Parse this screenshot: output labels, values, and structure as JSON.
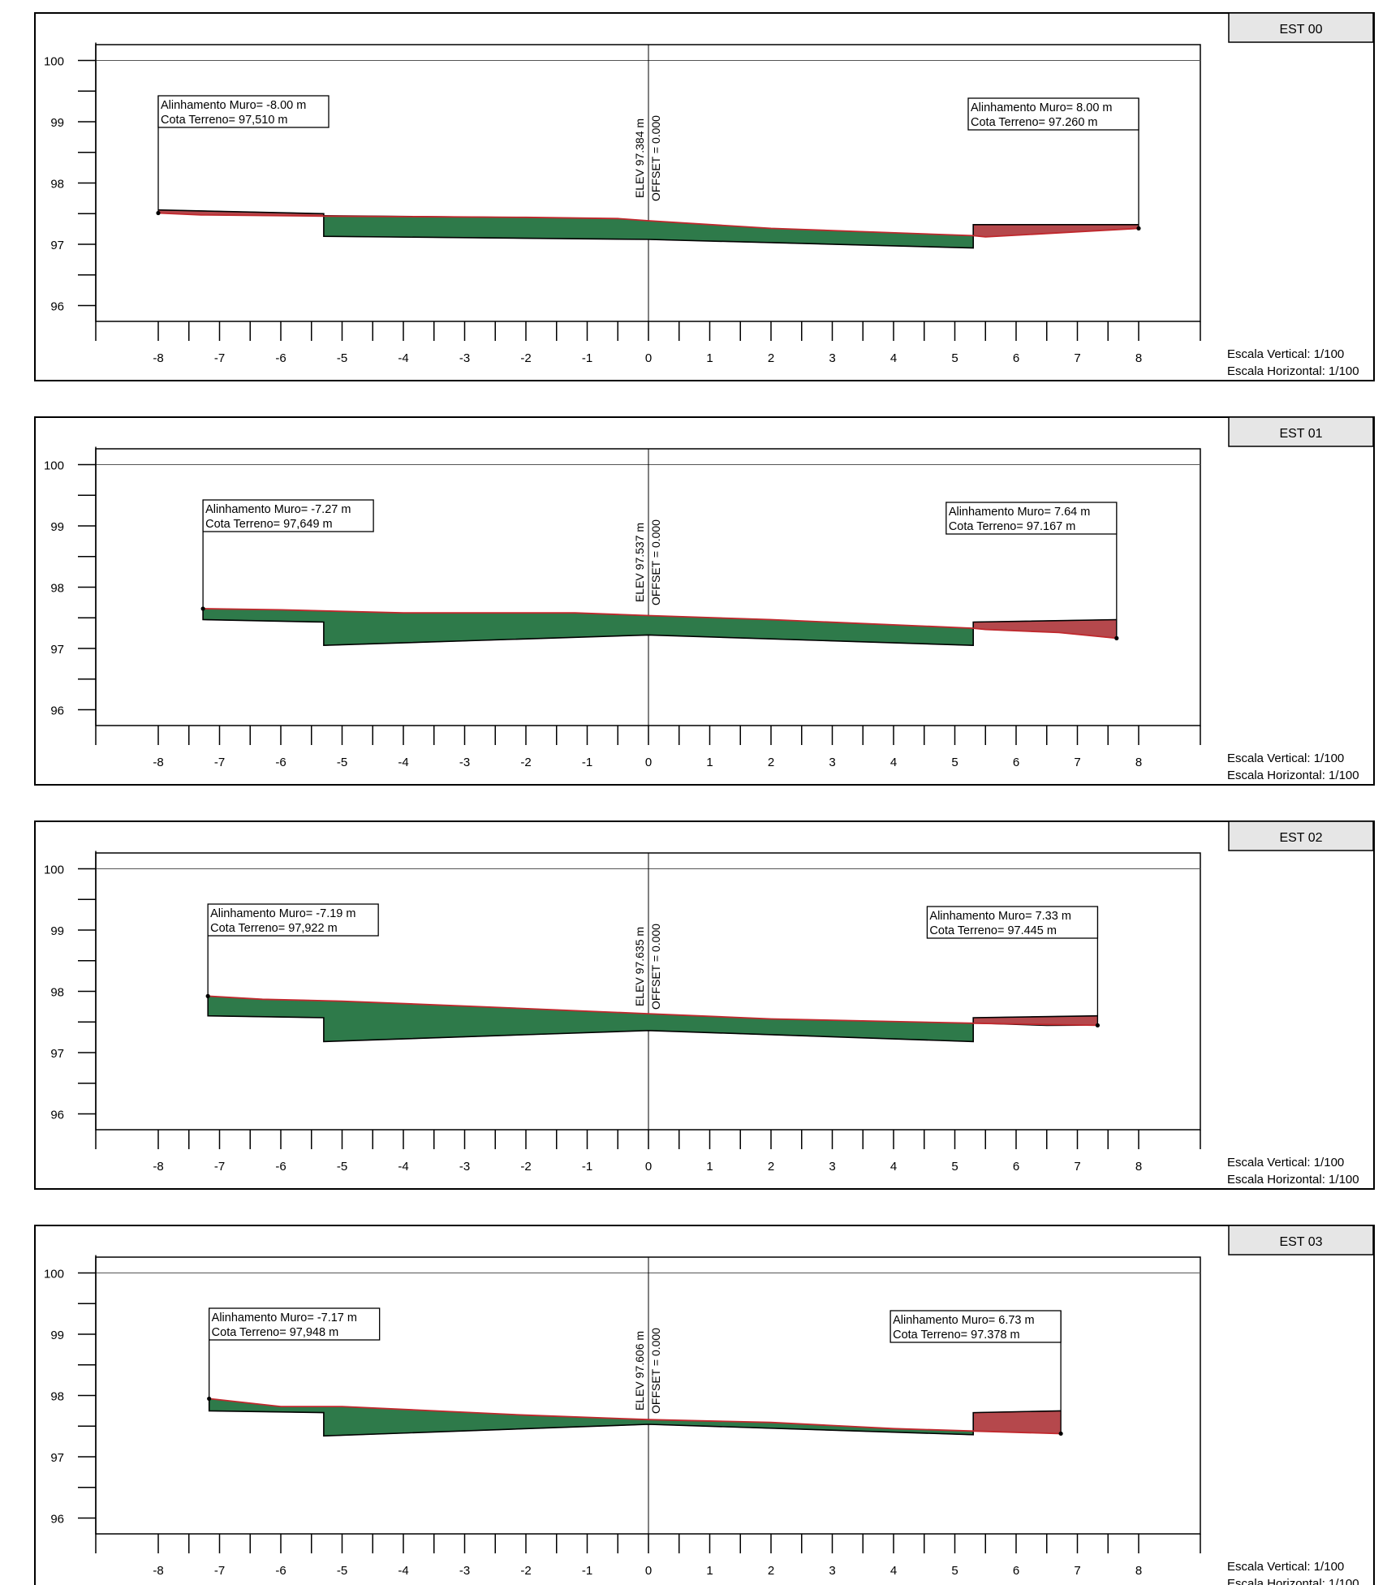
{
  "chart_data": [
    {
      "type": "area",
      "station": "EST 00",
      "center_label": {
        "elev": "ELEV 97.384 m",
        "offset": "OFFSET = 0.000"
      },
      "left_box": {
        "line1": "Alinhamento Muro= -8.00 m",
        "line2": "Cota Terreno= 97,510 m"
      },
      "right_box": {
        "line1": "Alinhamento Muro= 8.00 m",
        "line2": "Cota Terreno= 97.260 m"
      },
      "scale_vertical": "Escala Vertical: 1/100",
      "scale_horizontal": "Escala Horizontal: 1/100",
      "xlim": [
        -9,
        9
      ],
      "ylim": [
        95.75,
        100.25
      ],
      "x_ticks": [
        -8,
        -7,
        -6,
        -5,
        -4,
        -3,
        -2,
        -1,
        0,
        1,
        2,
        3,
        4,
        5,
        6,
        7,
        8
      ],
      "y_ticks": [
        96,
        97,
        98,
        99,
        100
      ],
      "left_wall_x": -8.0,
      "right_wall_x": 8.0,
      "ground": [
        [
          -8.0,
          97.51
        ],
        [
          -7.3,
          97.48
        ],
        [
          -5.3,
          97.46
        ],
        [
          -2.0,
          97.44
        ],
        [
          -0.5,
          97.42
        ],
        [
          0,
          97.384
        ],
        [
          2.0,
          97.26
        ],
        [
          5.3,
          97.14
        ],
        [
          5.5,
          97.12
        ],
        [
          8.0,
          97.26
        ]
      ],
      "design": [
        [
          -8.0,
          97.56
        ],
        [
          -5.3,
          97.5
        ],
        [
          -5.3,
          97.13
        ],
        [
          0,
          97.08
        ],
        [
          5.3,
          96.94
        ],
        [
          5.3,
          97.32
        ],
        [
          8.0,
          97.32
        ]
      ],
      "cut_polygon": [
        [
          -5.3,
          97.47
        ],
        [
          -2.0,
          97.44
        ],
        [
          -0.5,
          97.42
        ],
        [
          0,
          97.384
        ],
        [
          2.0,
          97.26
        ],
        [
          5.3,
          97.14
        ],
        [
          5.3,
          96.94
        ],
        [
          0,
          97.08
        ],
        [
          -5.3,
          97.13
        ]
      ],
      "fill_polygons": [
        [
          [
            -8.0,
            97.56
          ],
          [
            -5.3,
            97.5
          ],
          [
            -5.3,
            97.46
          ],
          [
            -7.3,
            97.48
          ],
          [
            -8.0,
            97.51
          ]
        ],
        [
          [
            5.3,
            97.32
          ],
          [
            8.0,
            97.32
          ],
          [
            8.0,
            97.26
          ],
          [
            5.5,
            97.12
          ],
          [
            5.3,
            97.14
          ]
        ]
      ]
    },
    {
      "type": "area",
      "station": "EST 01",
      "center_label": {
        "elev": "ELEV 97.537 m",
        "offset": "OFFSET = 0.000"
      },
      "left_box": {
        "line1": "Alinhamento Muro= -7.27 m",
        "line2": "Cota Terreno= 97,649 m"
      },
      "right_box": {
        "line1": "Alinhamento Muro= 7.64 m",
        "line2": "Cota Terreno= 97.167 m"
      },
      "scale_vertical": "Escala Vertical: 1/100",
      "scale_horizontal": "Escala Horizontal: 1/100",
      "xlim": [
        -9,
        9
      ],
      "ylim": [
        95.75,
        100.25
      ],
      "x_ticks": [
        -8,
        -7,
        -6,
        -5,
        -4,
        -3,
        -2,
        -1,
        0,
        1,
        2,
        3,
        4,
        5,
        6,
        7,
        8
      ],
      "y_ticks": [
        96,
        97,
        98,
        99,
        100
      ],
      "left_wall_x": -7.27,
      "right_wall_x": 7.64,
      "ground": [
        [
          -7.27,
          97.649
        ],
        [
          -6.0,
          97.63
        ],
        [
          -4.0,
          97.58
        ],
        [
          -1.2,
          97.58
        ],
        [
          0,
          97.537
        ],
        [
          2.0,
          97.47
        ],
        [
          5.3,
          97.33
        ],
        [
          5.5,
          97.31
        ],
        [
          6.7,
          97.26
        ],
        [
          7.64,
          97.167
        ]
      ],
      "design": [
        [
          -7.27,
          97.64
        ],
        [
          -7.27,
          97.47
        ],
        [
          -5.3,
          97.43
        ],
        [
          -5.3,
          97.05
        ],
        [
          0,
          97.22
        ],
        [
          5.3,
          97.05
        ],
        [
          5.3,
          97.43
        ],
        [
          7.64,
          97.47
        ]
      ],
      "cut_polygon": [
        [
          -7.27,
          97.649
        ],
        [
          -6.0,
          97.63
        ],
        [
          -4.0,
          97.58
        ],
        [
          -1.2,
          97.58
        ],
        [
          0,
          97.537
        ],
        [
          2.0,
          97.47
        ],
        [
          5.3,
          97.33
        ],
        [
          5.3,
          97.05
        ],
        [
          0,
          97.22
        ],
        [
          -5.3,
          97.05
        ],
        [
          -5.3,
          97.43
        ],
        [
          -7.27,
          97.47
        ]
      ],
      "fill_polygons": [
        [
          [
            5.3,
            97.43
          ],
          [
            7.64,
            97.47
          ],
          [
            7.64,
            97.167
          ],
          [
            6.7,
            97.26
          ],
          [
            5.5,
            97.31
          ],
          [
            5.3,
            97.33
          ]
        ]
      ]
    },
    {
      "type": "area",
      "station": "EST 02",
      "center_label": {
        "elev": "ELEV 97.635 m",
        "offset": "OFFSET = 0.000"
      },
      "left_box": {
        "line1": "Alinhamento Muro= -7.19 m",
        "line2": "Cota Terreno= 97,922 m"
      },
      "right_box": {
        "line1": "Alinhamento Muro= 7.33 m",
        "line2": "Cota Terreno= 97.445 m"
      },
      "scale_vertical": "Escala Vertical: 1/100",
      "scale_horizontal": "Escala Horizontal: 1/100",
      "xlim": [
        -9,
        9
      ],
      "ylim": [
        95.75,
        100.25
      ],
      "x_ticks": [
        -8,
        -7,
        -6,
        -5,
        -4,
        -3,
        -2,
        -1,
        0,
        1,
        2,
        3,
        4,
        5,
        6,
        7,
        8
      ],
      "y_ticks": [
        96,
        97,
        98,
        99,
        100
      ],
      "left_wall_x": -7.19,
      "right_wall_x": 7.33,
      "ground": [
        [
          -7.19,
          97.922
        ],
        [
          -6.3,
          97.87
        ],
        [
          -5.0,
          97.84
        ],
        [
          -3.0,
          97.76
        ],
        [
          0,
          97.635
        ],
        [
          2.0,
          97.55
        ],
        [
          5.3,
          97.48
        ],
        [
          7.33,
          97.445
        ]
      ],
      "design": [
        [
          -7.19,
          97.92
        ],
        [
          -7.19,
          97.6
        ],
        [
          -5.3,
          97.57
        ],
        [
          -5.3,
          97.18
        ],
        [
          0,
          97.36
        ],
        [
          5.3,
          97.18
        ],
        [
          5.3,
          97.57
        ],
        [
          7.33,
          97.6
        ]
      ],
      "cut_polygon": [
        [
          -7.19,
          97.922
        ],
        [
          -6.3,
          97.87
        ],
        [
          -5.0,
          97.84
        ],
        [
          -3.0,
          97.76
        ],
        [
          0,
          97.635
        ],
        [
          2.0,
          97.55
        ],
        [
          5.3,
          97.48
        ],
        [
          5.3,
          97.18
        ],
        [
          0,
          97.36
        ],
        [
          -5.3,
          97.18
        ],
        [
          -5.3,
          97.57
        ],
        [
          -7.19,
          97.6
        ]
      ],
      "fill_polygons": [
        [
          [
            5.3,
            97.57
          ],
          [
            7.33,
            97.6
          ],
          [
            7.33,
            97.445
          ],
          [
            6.5,
            97.44
          ],
          [
            5.3,
            97.48
          ]
        ]
      ]
    },
    {
      "type": "area",
      "station": "EST 03",
      "center_label": {
        "elev": "ELEV 97.606 m",
        "offset": "OFFSET = 0.000"
      },
      "left_box": {
        "line1": "Alinhamento Muro= -7.17 m",
        "line2": "Cota Terreno= 97,948 m"
      },
      "right_box": {
        "line1": "Alinhamento Muro= 6.73 m",
        "line2": "Cota Terreno= 97.378 m"
      },
      "scale_vertical": "Escala Vertical: 1/100",
      "scale_horizontal": "Escala Horizontal: 1/100",
      "xlim": [
        -9,
        9
      ],
      "ylim": [
        95.75,
        100.25
      ],
      "x_ticks": [
        -8,
        -7,
        -6,
        -5,
        -4,
        -3,
        -2,
        -1,
        0,
        1,
        2,
        3,
        4,
        5,
        6,
        7,
        8
      ],
      "y_ticks": [
        96,
        97,
        98,
        99,
        100
      ],
      "left_wall_x": -7.17,
      "right_wall_x": 6.73,
      "ground": [
        [
          -7.17,
          97.948
        ],
        [
          -6.0,
          97.82
        ],
        [
          -5.0,
          97.82
        ],
        [
          -2.0,
          97.68
        ],
        [
          0,
          97.606
        ],
        [
          2.0,
          97.56
        ],
        [
          4.0,
          97.46
        ],
        [
          5.3,
          97.42
        ],
        [
          6.73,
          97.378
        ]
      ],
      "design": [
        [
          -7.17,
          97.95
        ],
        [
          -7.17,
          97.75
        ],
        [
          -5.3,
          97.72
        ],
        [
          -5.3,
          97.34
        ],
        [
          0,
          97.53
        ],
        [
          5.3,
          97.36
        ],
        [
          5.3,
          97.72
        ],
        [
          6.73,
          97.75
        ]
      ],
      "cut_polygon": [
        [
          -7.17,
          97.948
        ],
        [
          -6.0,
          97.82
        ],
        [
          -5.0,
          97.82
        ],
        [
          -2.0,
          97.68
        ],
        [
          0,
          97.606
        ],
        [
          2.0,
          97.56
        ],
        [
          4.0,
          97.46
        ],
        [
          5.3,
          97.42
        ],
        [
          5.3,
          97.36
        ],
        [
          0,
          97.53
        ],
        [
          -5.3,
          97.34
        ],
        [
          -5.3,
          97.72
        ],
        [
          -7.17,
          97.75
        ]
      ],
      "fill_polygons": [
        [
          [
            5.3,
            97.72
          ],
          [
            6.73,
            97.75
          ],
          [
            6.73,
            97.378
          ],
          [
            5.3,
            97.42
          ]
        ]
      ]
    }
  ],
  "colors": {
    "cut": "#2e7a4a",
    "fill": "#b5484c",
    "ground_line": "#c0282d",
    "frame": "#000000",
    "header_box": "#e6e6e6"
  }
}
